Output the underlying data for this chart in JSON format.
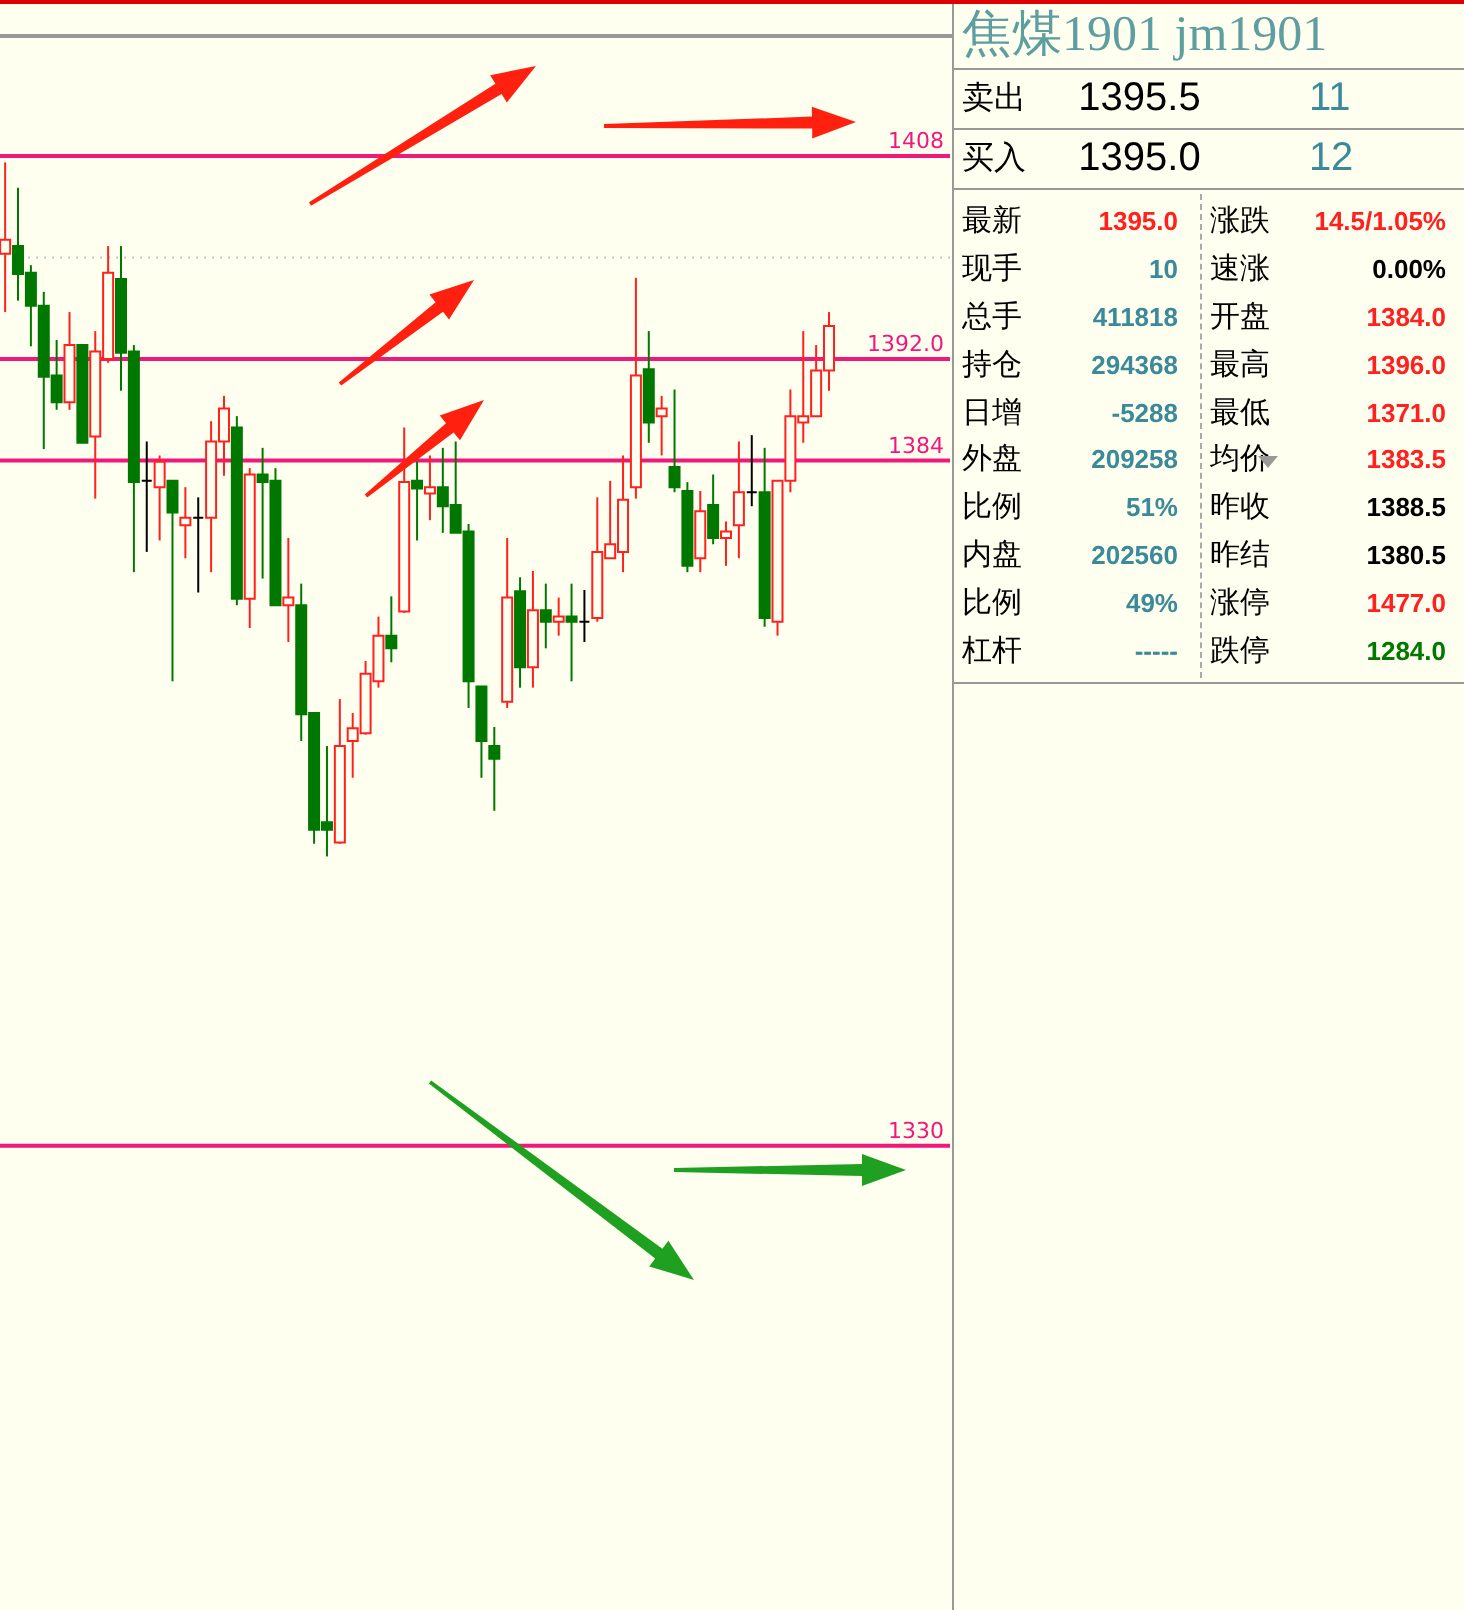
{
  "chart_data": [
    {
      "type": "candlestick",
      "categories": [
        null,
        null,
        null,
        null,
        null,
        null,
        null,
        null,
        null,
        null,
        null,
        null,
        null,
        null,
        null,
        null,
        null,
        null,
        null,
        null,
        null,
        null,
        null,
        null,
        null,
        null,
        null,
        null,
        null,
        null,
        null,
        null,
        null,
        null,
        null,
        null,
        null,
        null,
        null,
        null,
        null,
        null,
        null,
        null,
        null,
        null,
        null,
        null,
        null,
        null,
        null,
        null,
        null,
        null,
        null,
        null,
        null,
        null,
        null,
        null,
        null,
        null,
        null,
        null,
        null,
        null,
        null,
        null,
        null,
        null,
        null,
        null,
        null,
        null
      ],
      "ohlc": [
        [
          1400.3,
          1407.5,
          1395.7,
          1401.4
        ],
        [
          1400.9,
          1405.5,
          1396.6,
          1398.7
        ],
        [
          1398.8,
          1399.4,
          1393.0,
          1396.2
        ],
        [
          1396.2,
          1397.3,
          1384.9,
          1390.6
        ],
        [
          1390.7,
          1393.5,
          1388.0,
          1388.6
        ],
        [
          1388.6,
          1395.7,
          1388.0,
          1393.1
        ],
        [
          1393.1,
          1393.1,
          1385.4,
          1385.4
        ],
        [
          1385.9,
          1394.2,
          1381.0,
          1392.6
        ],
        [
          1392.0,
          1400.9,
          1391.7,
          1398.8
        ],
        [
          1398.3,
          1400.9,
          1389.5,
          1392.5
        ],
        [
          1392.6,
          1393.1,
          1375.2,
          1382.3
        ],
        [
          1382.4,
          1385.5,
          1376.8,
          1382.4
        ],
        [
          1381.9,
          1384.4,
          1377.7,
          1383.9
        ],
        [
          1382.4,
          1382.4,
          1366.6,
          1379.9
        ],
        [
          1378.9,
          1381.9,
          1376.3,
          1379.5
        ],
        [
          1379.5,
          1381.1,
          1373.6,
          1379.5
        ],
        [
          1379.5,
          1387.1,
          1375.2,
          1385.5
        ],
        [
          1385.5,
          1389.1,
          1382.8,
          1388.1
        ],
        [
          1386.6,
          1387.5,
          1372.6,
          1373.1
        ],
        [
          1373.1,
          1383.4,
          1370.8,
          1382.9
        ],
        [
          1382.9,
          1385.0,
          1374.7,
          1382.3
        ],
        [
          1382.4,
          1383.4,
          1372.6,
          1372.6
        ],
        [
          1372.6,
          1377.9,
          1369.7,
          1373.2
        ],
        [
          1372.6,
          1374.3,
          1361.9,
          1364.0
        ],
        [
          1364.1,
          1364.1,
          1353.8,
          1354.9
        ],
        [
          1355.5,
          1361.5,
          1352.8,
          1354.9
        ],
        [
          1353.9,
          1365.2,
          1353.8,
          1361.5
        ],
        [
          1361.9,
          1364.1,
          1359.0,
          1362.9
        ],
        [
          1362.5,
          1368.2,
          1362.4,
          1367.2
        ],
        [
          1366.6,
          1371.7,
          1366.1,
          1370.2
        ],
        [
          1370.2,
          1373.3,
          1368.1,
          1369.2
        ],
        [
          1372.1,
          1386.6,
          1372.0,
          1382.3
        ],
        [
          1382.4,
          1383.9,
          1377.7,
          1381.8
        ],
        [
          1381.4,
          1384.4,
          1379.3,
          1381.9
        ],
        [
          1381.9,
          1385.0,
          1378.3,
          1380.4
        ],
        [
          1380.5,
          1385.5,
          1378.3,
          1378.3
        ],
        [
          1378.4,
          1379.0,
          1364.5,
          1366.6
        ],
        [
          1366.2,
          1366.2,
          1359.0,
          1361.9
        ],
        [
          1361.5,
          1363.0,
          1356.4,
          1360.5
        ],
        [
          1365.0,
          1377.9,
          1364.5,
          1373.2
        ],
        [
          1373.7,
          1374.8,
          1366.1,
          1367.7
        ],
        [
          1367.7,
          1375.3,
          1366.1,
          1372.2
        ],
        [
          1372.2,
          1374.3,
          1369.2,
          1371.3
        ],
        [
          1371.3,
          1373.2,
          1370.2,
          1371.7
        ],
        [
          1371.7,
          1374.3,
          1366.6,
          1371.3
        ],
        [
          1371.3,
          1373.8,
          1369.7,
          1371.3
        ],
        [
          1371.6,
          1381.1,
          1371.3,
          1376.8
        ],
        [
          1376.3,
          1382.4,
          1376.3,
          1377.4
        ],
        [
          1376.8,
          1384.4,
          1375.2,
          1380.9
        ],
        [
          1381.9,
          1398.4,
          1381.0,
          1390.7
        ],
        [
          1391.2,
          1394.2,
          1385.4,
          1387.0
        ],
        [
          1387.5,
          1389.1,
          1384.4,
          1388.1
        ],
        [
          1383.5,
          1389.6,
          1381.5,
          1381.9
        ],
        [
          1381.6,
          1382.3,
          1375.2,
          1375.7
        ],
        [
          1376.3,
          1381.6,
          1375.2,
          1380.0
        ],
        [
          1380.5,
          1382.9,
          1377.4,
          1377.9
        ],
        [
          1377.9,
          1379.2,
          1375.7,
          1378.4
        ],
        [
          1378.9,
          1385.5,
          1376.3,
          1381.5
        ],
        [
          1381.5,
          1386.0,
          1380.4,
          1381.5
        ],
        [
          1381.5,
          1385.0,
          1370.9,
          1371.6
        ],
        [
          1371.3,
          1382.4,
          1370.2,
          1382.4
        ],
        [
          1382.4,
          1389.6,
          1381.5,
          1387.5
        ],
        [
          1387.0,
          1394.2,
          1385.4,
          1387.5
        ],
        [
          1387.5,
          1393.1,
          1387.5,
          1391.1
        ],
        [
          1391.1,
          1395.7,
          1389.5,
          1394.6
        ],
        null,
        null,
        null,
        null,
        null,
        null,
        null,
        null,
        null
      ],
      "ylim": [
        1294.2,
        1417.3
      ],
      "tick_labels": false,
      "ref_lines": [
        {
          "axis": "y",
          "value": 1400,
          "color": "#c8c8c8",
          "line_style": "dotted"
        },
        {
          "axis": "y",
          "value": 1408,
          "label": "1408",
          "color": "#f0187a",
          "line_style": "solid"
        },
        {
          "axis": "y",
          "value": 1392,
          "label": "1392.0",
          "color": "#f0187a",
          "line_style": "solid"
        },
        {
          "axis": "y",
          "value": 1384,
          "label": "1384",
          "color": "#f0187a",
          "line_style": "solid"
        },
        {
          "axis": "y",
          "value": 1330,
          "label": "1330",
          "color": "#f0187a",
          "line_style": "solid"
        }
      ]
    },
    {
      "type": "other",
      "title": "焦煤1901  jm1901",
      "annotations": [
        "卖出",
        "1395.5",
        "11",
        "买入",
        "1395.0",
        "12",
        "最新",
        "1395.0",
        "涨跌",
        "14.5/1.05%",
        "现手",
        "10",
        "速涨",
        "0.00%",
        "总手",
        "411818",
        "开盘",
        "1384.0",
        "持仓",
        "294368",
        "最高",
        "1396.0",
        "日增",
        "-5288",
        "最低",
        "1371.0",
        "外盘",
        "209258",
        "均价",
        "1383.5",
        "比例",
        "51%",
        "昨收",
        "1388.5",
        "内盘",
        "202560",
        "昨结",
        "1380.5",
        "比例",
        "49%",
        "涨停",
        "1477.0",
        "杠杆",
        "-----",
        "跌停",
        "1284.0"
      ]
    }
  ]
}
